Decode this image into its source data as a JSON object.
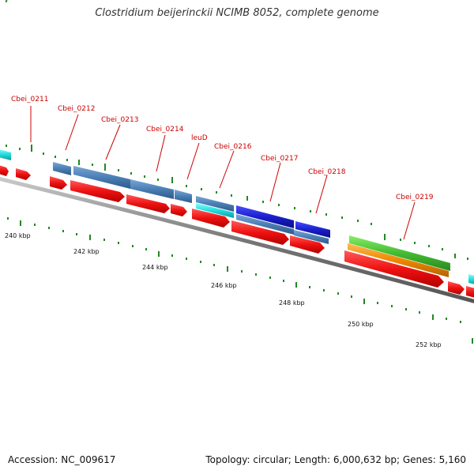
{
  "title": "Clostridium beijerinckii NCIMB 8052, complete genome",
  "footer": {
    "accession": "Accession: NC_009617",
    "topology": "Topology: circular; Length: 6,000,632 bp; Genes: 5,160"
  },
  "genes": [
    {
      "name": "Cbei_0211",
      "label": "Cbei_0211"
    },
    {
      "name": "Cbei_0212",
      "label": "Cbei_0212"
    },
    {
      "name": "Cbei_0213",
      "label": "Cbei_0213"
    },
    {
      "name": "Cbei_0214",
      "label": "Cbei_0214"
    },
    {
      "name": "leuD",
      "label": "leuD"
    },
    {
      "name": "Cbei_0216",
      "label": "Cbei_0216"
    },
    {
      "name": "Cbei_0217",
      "label": "Cbei_0217"
    },
    {
      "name": "Cbei_0218",
      "label": "Cbei_0218"
    },
    {
      "name": "Cbei_0219",
      "label": "Cbei_0219"
    }
  ],
  "scale_labels": [
    "240 kbp",
    "242 kbp",
    "244 kbp",
    "246 kbp",
    "248 kbp",
    "250 kbp",
    "252 kbp"
  ],
  "colors": {
    "cds_arrow": "#ee1111",
    "backbone": "#777777",
    "label_text": "#cc0000",
    "steel_blue": "#4a7fb5",
    "royal_blue": "#1a1fcc",
    "cyan": "#22dddd",
    "green": "#44bb33",
    "orange": "#ee8800",
    "tick_green": "#228822"
  }
}
